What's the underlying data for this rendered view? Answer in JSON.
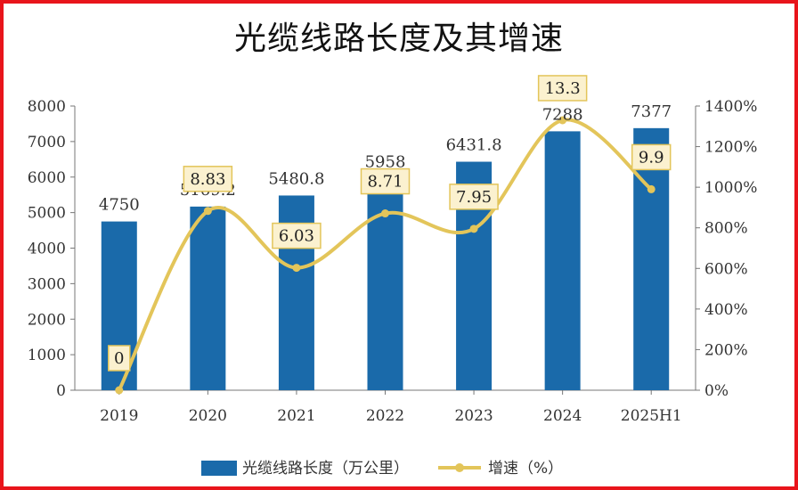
{
  "chart_data": {
    "type": "bar",
    "title": "光缆线路长度及其增速",
    "categories": [
      "2019",
      "2020",
      "2021",
      "2022",
      "2023",
      "2024",
      "2025H1"
    ],
    "series": [
      {
        "name": "光缆线路长度（万公里）",
        "type": "bar",
        "axis": "left",
        "color": "#1a6aaa",
        "values": [
          4750,
          5169.2,
          5480.8,
          5958,
          6431.8,
          7288,
          7377
        ],
        "labels": [
          "4750",
          "5169.2",
          "5480.8",
          "5958",
          "6431.8",
          "7288",
          "7377"
        ]
      },
      {
        "name": "增速（%）",
        "type": "line",
        "axis": "right",
        "color": "#e3c55a",
        "values": [
          0,
          8.83,
          6.03,
          8.71,
          7.95,
          13.3,
          9.9
        ],
        "labels": [
          "0",
          "8.83",
          "6.03",
          "8.71",
          "7.95",
          "13.3",
          "9.9"
        ]
      }
    ],
    "y_left": {
      "range": [
        0,
        8000
      ],
      "ticks": [
        "0",
        "1000",
        "2000",
        "3000",
        "4000",
        "5000",
        "6000",
        "7000",
        "8000"
      ]
    },
    "y_right": {
      "range": [
        0,
        1400
      ],
      "ticks": [
        "0%",
        "200%",
        "400%",
        "600%",
        "800%",
        "1000%",
        "1200%",
        "1400%"
      ]
    },
    "grid": false,
    "legend_position": "bottom"
  }
}
